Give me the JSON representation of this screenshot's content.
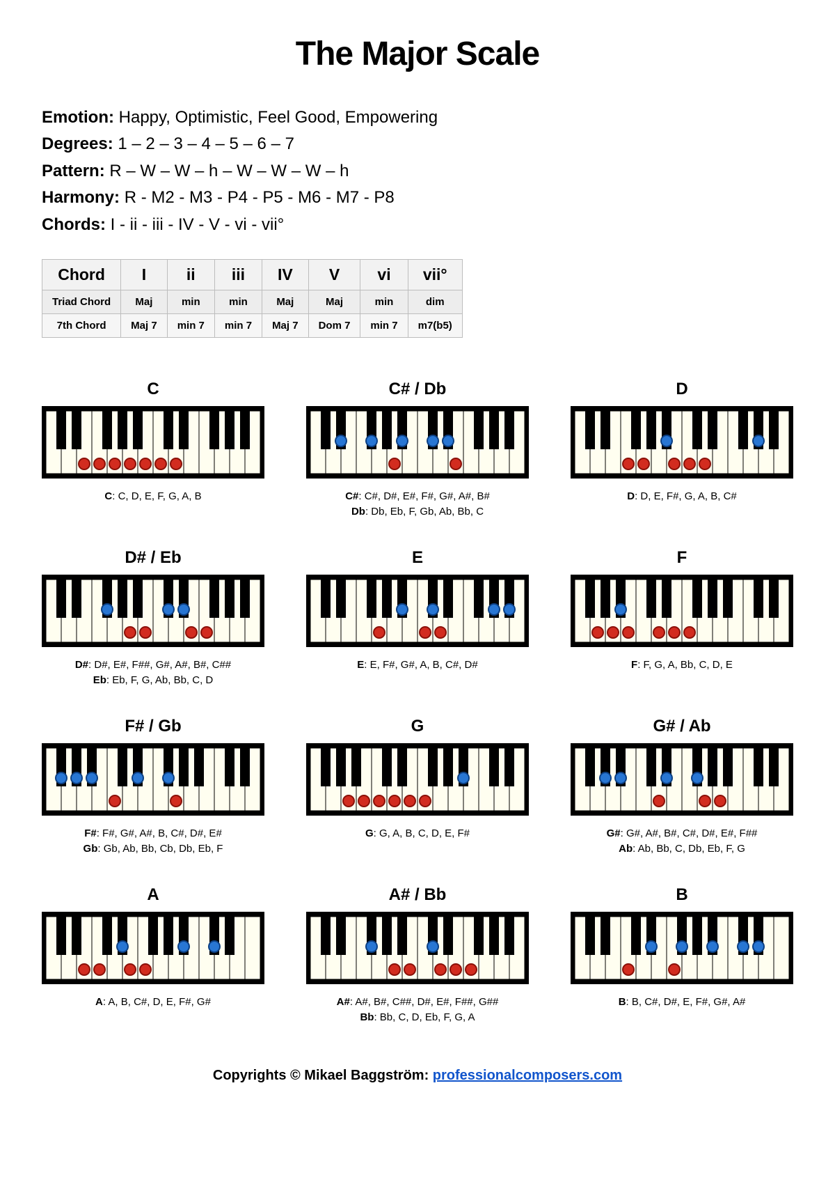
{
  "title": "The Major Scale",
  "meta": {
    "emotion_label": "Emotion:",
    "emotion": "Happy, Optimistic, Feel Good, Empowering",
    "degrees_label": "Degrees:",
    "degrees": "1 – 2 – 3 – 4 – 5 – 6 – 7",
    "pattern_label": "Pattern:",
    "pattern": "R – W – W – h – W – W – W – h",
    "harmony_label": "Harmony:",
    "harmony": "R - M2 - M3 - P4 - P5 - M6 - M7 - P8",
    "chords_label": "Chords:",
    "chords": "I - ii - iii - IV - V - vi - vii°"
  },
  "table": {
    "header": [
      "Chord",
      "I",
      "ii",
      "iii",
      "IV",
      "V",
      "vi",
      "vii°"
    ],
    "triad_label": "Triad Chord",
    "triad": [
      "Maj",
      "min",
      "min",
      "Maj",
      "Maj",
      "min",
      "dim"
    ],
    "seventh_label": "7th Chord",
    "seventh": [
      "Maj 7",
      "min 7",
      "min 7",
      "Maj 7",
      "Dom 7",
      "min 7",
      "m7(b5)"
    ]
  },
  "colors": {
    "dot_white_note": "#d22c1f",
    "dot_black_note": "#2876d3",
    "white_key": "#fffef0",
    "black_key": "#000000"
  },
  "keyboard_geometry": {
    "white_count": 14,
    "white_width": 22,
    "white_height": 90,
    "black_width": 14,
    "black_height": 55,
    "dot_radius": 8
  },
  "scales": [
    {
      "title": "C",
      "labels": [
        {
          "root": "C",
          "notes": "C, D, E, F, G, A, B"
        }
      ],
      "dots": [
        {
          "n": "w",
          "i": 2
        },
        {
          "n": "w",
          "i": 3
        },
        {
          "n": "w",
          "i": 4
        },
        {
          "n": "w",
          "i": 5
        },
        {
          "n": "w",
          "i": 6
        },
        {
          "n": "w",
          "i": 7
        },
        {
          "n": "w",
          "i": 8
        }
      ]
    },
    {
      "title": "C# / Db",
      "labels": [
        {
          "root": "C#",
          "notes": "C#, D#, E#, F#, G#, A#, B#"
        },
        {
          "root": "Db",
          "notes": "Db, Eb, F, Gb, Ab, Bb, C"
        }
      ],
      "dots": [
        {
          "n": "b",
          "i": 2
        },
        {
          "n": "b",
          "i": 3
        },
        {
          "n": "w",
          "i": 5
        },
        {
          "n": "b",
          "i": 5
        },
        {
          "n": "b",
          "i": 6
        },
        {
          "n": "b",
          "i": 7
        },
        {
          "n": "w",
          "i": 9
        }
      ]
    },
    {
      "title": "D",
      "labels": [
        {
          "root": "D",
          "notes": "D, E, F#, G, A, B, C#"
        }
      ],
      "dots": [
        {
          "n": "w",
          "i": 3
        },
        {
          "n": "w",
          "i": 4
        },
        {
          "n": "b",
          "i": 5
        },
        {
          "n": "w",
          "i": 6
        },
        {
          "n": "w",
          "i": 7
        },
        {
          "n": "w",
          "i": 8
        },
        {
          "n": "b",
          "i": 9
        }
      ]
    },
    {
      "title": "D# / Eb",
      "labels": [
        {
          "root": "D#",
          "notes": "D#, E#, F##, G#, A#, B#, C##"
        },
        {
          "root": "Eb",
          "notes": "Eb, F, G, Ab, Bb, C, D"
        }
      ],
      "dots": [
        {
          "n": "b",
          "i": 3
        },
        {
          "n": "w",
          "i": 5
        },
        {
          "n": "w",
          "i": 6
        },
        {
          "n": "b",
          "i": 6
        },
        {
          "n": "b",
          "i": 7
        },
        {
          "n": "w",
          "i": 9
        },
        {
          "n": "w",
          "i": 10
        }
      ]
    },
    {
      "title": "E",
      "labels": [
        {
          "root": "E",
          "notes": "E, F#, G#, A, B, C#, D#"
        }
      ],
      "dots": [
        {
          "n": "w",
          "i": 4
        },
        {
          "n": "b",
          "i": 5
        },
        {
          "n": "b",
          "i": 6
        },
        {
          "n": "w",
          "i": 7
        },
        {
          "n": "w",
          "i": 8
        },
        {
          "n": "b",
          "i": 9
        },
        {
          "n": "b",
          "i": 10
        }
      ]
    },
    {
      "title": "F",
      "labels": [
        {
          "root": "F",
          "notes": "F, G, A, Bb, C, D, E"
        }
      ],
      "dots": [
        {
          "n": "w",
          "i": 1
        },
        {
          "n": "w",
          "i": 2
        },
        {
          "n": "w",
          "i": 3
        },
        {
          "n": "b",
          "i": 3
        },
        {
          "n": "w",
          "i": 5
        },
        {
          "n": "w",
          "i": 6
        },
        {
          "n": "w",
          "i": 7
        }
      ]
    },
    {
      "title": "F# / Gb",
      "labels": [
        {
          "root": "F#",
          "notes": "F#, G#, A#, B, C#, D#, E#"
        },
        {
          "root": "Gb",
          "notes": "Gb, Ab, Bb, Cb, Db, Eb, F"
        }
      ],
      "dots": [
        {
          "n": "b",
          "i": 1
        },
        {
          "n": "b",
          "i": 2
        },
        {
          "n": "b",
          "i": 3
        },
        {
          "n": "w",
          "i": 4
        },
        {
          "n": "b",
          "i": 5
        },
        {
          "n": "b",
          "i": 6
        },
        {
          "n": "w",
          "i": 8
        }
      ]
    },
    {
      "title": "G",
      "labels": [
        {
          "root": "G",
          "notes": "G, A, B, C, D, E, F#"
        }
      ],
      "dots": [
        {
          "n": "w",
          "i": 2
        },
        {
          "n": "w",
          "i": 3
        },
        {
          "n": "w",
          "i": 4
        },
        {
          "n": "w",
          "i": 5
        },
        {
          "n": "w",
          "i": 6
        },
        {
          "n": "w",
          "i": 7
        },
        {
          "n": "b",
          "i": 8
        }
      ]
    },
    {
      "title": "G# / Ab",
      "labels": [
        {
          "root": "G#",
          "notes": "G#, A#, B#, C#, D#, E#, F##"
        },
        {
          "root": "Ab",
          "notes": "Ab, Bb, C, Db, Eb, F, G"
        }
      ],
      "dots": [
        {
          "n": "b",
          "i": 2
        },
        {
          "n": "b",
          "i": 3
        },
        {
          "n": "w",
          "i": 5
        },
        {
          "n": "b",
          "i": 5
        },
        {
          "n": "b",
          "i": 6
        },
        {
          "n": "w",
          "i": 8
        },
        {
          "n": "w",
          "i": 9
        }
      ]
    },
    {
      "title": "A",
      "labels": [
        {
          "root": "A",
          "notes": "A, B, C#, D, E, F#, G#"
        }
      ],
      "dots": [
        {
          "n": "w",
          "i": 2
        },
        {
          "n": "w",
          "i": 3
        },
        {
          "n": "b",
          "i": 4
        },
        {
          "n": "w",
          "i": 5
        },
        {
          "n": "w",
          "i": 6
        },
        {
          "n": "b",
          "i": 7
        },
        {
          "n": "b",
          "i": 8
        }
      ]
    },
    {
      "title": "A# / Bb",
      "labels": [
        {
          "root": "A#",
          "notes": "A#, B#, C##, D#, E#, F##, G##"
        },
        {
          "root": "Bb",
          "notes": "Bb, C, D, Eb, F, G, A"
        }
      ],
      "dots": [
        {
          "n": "b",
          "i": 3
        },
        {
          "n": "w",
          "i": 5
        },
        {
          "n": "w",
          "i": 6
        },
        {
          "n": "b",
          "i": 6
        },
        {
          "n": "w",
          "i": 8
        },
        {
          "n": "w",
          "i": 9
        },
        {
          "n": "w",
          "i": 10
        }
      ]
    },
    {
      "title": "B",
      "labels": [
        {
          "root": "B",
          "notes": "B, C#, D#, E, F#, G#, A#"
        }
      ],
      "dots": [
        {
          "n": "w",
          "i": 3
        },
        {
          "n": "b",
          "i": 4
        },
        {
          "n": "b",
          "i": 5
        },
        {
          "n": "w",
          "i": 6
        },
        {
          "n": "b",
          "i": 7
        },
        {
          "n": "b",
          "i": 8
        },
        {
          "n": "b",
          "i": 9
        }
      ]
    }
  ],
  "scale_start_note": {
    "0": "C",
    "1": "C",
    "2": "C",
    "3": "C",
    "4": "C",
    "5": "F",
    "6": "F",
    "7": "F",
    "8": "F",
    "9": "G",
    "10": "C",
    "11": "G"
  },
  "footer": {
    "text": "Copyrights © Mikael Baggström: ",
    "link_text": "professionalcomposers.com",
    "link_href": "#"
  }
}
